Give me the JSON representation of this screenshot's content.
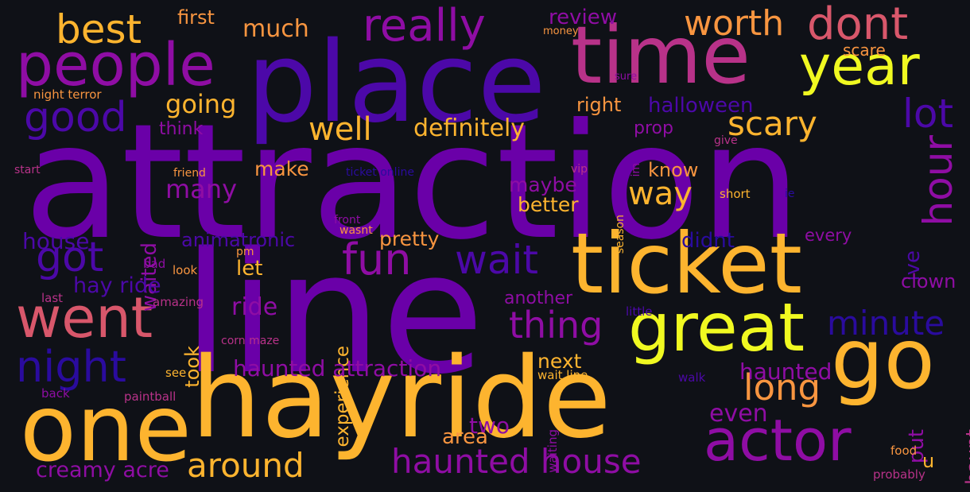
{
  "palette": {
    "background": "#0f1117",
    "deep_blue": "#2a0b9e",
    "indigo": "#4c08a8",
    "violet": "#6a00a8",
    "purple": "#8f0da4",
    "magenta": "#b83289",
    "rose": "#d8576b",
    "orange": "#f89540",
    "amber": "#fdb42f",
    "yellow": "#f0f921"
  },
  "words": [
    {
      "text": "attraction",
      "c": "violet"
    },
    {
      "text": "line",
      "c": "violet"
    },
    {
      "text": "hayride",
      "c": "amber"
    },
    {
      "text": "place",
      "c": "indigo"
    },
    {
      "text": "time",
      "c": "magenta"
    },
    {
      "text": "ticket",
      "c": "amber"
    },
    {
      "text": "one",
      "c": "amber"
    },
    {
      "text": "go",
      "c": "amber"
    },
    {
      "text": "great",
      "c": "yellow"
    },
    {
      "text": "people",
      "c": "purple"
    },
    {
      "text": "year",
      "c": "yellow"
    },
    {
      "text": "went",
      "c": "rose"
    },
    {
      "text": "actor",
      "c": "purple"
    },
    {
      "text": "really",
      "c": "purple"
    },
    {
      "text": "dont",
      "c": "rose"
    },
    {
      "text": "worth",
      "c": "orange"
    },
    {
      "text": "best",
      "c": "amber"
    },
    {
      "text": "good",
      "c": "indigo"
    },
    {
      "text": "fun",
      "c": "purple"
    },
    {
      "text": "wait",
      "c": "indigo"
    },
    {
      "text": "got",
      "c": "indigo"
    },
    {
      "text": "night",
      "c": "deep_blue"
    },
    {
      "text": "haunted house",
      "c": "purple"
    },
    {
      "text": "long",
      "c": "orange"
    },
    {
      "text": "scary",
      "c": "amber"
    },
    {
      "text": "lot",
      "c": "indigo"
    },
    {
      "text": "hour",
      "c": "purple"
    },
    {
      "text": "thing",
      "c": "purple"
    },
    {
      "text": "minute",
      "c": "deep_blue"
    },
    {
      "text": "around",
      "c": "amber"
    },
    {
      "text": "way",
      "c": "amber"
    },
    {
      "text": "well",
      "c": "amber"
    },
    {
      "text": "definitely",
      "c": "amber"
    },
    {
      "text": "going",
      "c": "amber"
    },
    {
      "text": "much",
      "c": "orange"
    },
    {
      "text": "first",
      "c": "orange"
    },
    {
      "text": "review",
      "c": "purple"
    },
    {
      "text": "money",
      "c": "orange"
    },
    {
      "text": "scare",
      "c": "orange"
    },
    {
      "text": "halloween",
      "c": "indigo"
    },
    {
      "text": "right",
      "c": "orange"
    },
    {
      "text": "think",
      "c": "purple"
    },
    {
      "text": "prop",
      "c": "purple"
    },
    {
      "text": "give",
      "c": "magenta"
    },
    {
      "text": "night terror",
      "c": "orange"
    },
    {
      "text": "sure",
      "c": "purple"
    },
    {
      "text": "start",
      "c": "magenta"
    },
    {
      "text": "friend",
      "c": "orange"
    },
    {
      "text": "ticket online",
      "c": "deep_blue"
    },
    {
      "text": "vip",
      "c": "magenta"
    },
    {
      "text": "season",
      "c": "amber"
    },
    {
      "text": "im",
      "c": "purple"
    },
    {
      "text": "know",
      "c": "orange"
    },
    {
      "text": "short",
      "c": "amber"
    },
    {
      "text": "ie",
      "c": "deep_blue"
    },
    {
      "text": "make",
      "c": "orange"
    },
    {
      "text": "many",
      "c": "purple"
    },
    {
      "text": "waited",
      "c": "purple"
    },
    {
      "text": "maybe",
      "c": "purple"
    },
    {
      "text": "better",
      "c": "amber"
    },
    {
      "text": "house",
      "c": "indigo"
    },
    {
      "text": "animatronic",
      "c": "indigo"
    },
    {
      "text": "pretty",
      "c": "orange"
    },
    {
      "text": "front",
      "c": "purple"
    },
    {
      "text": "wasnt",
      "c": "orange"
    },
    {
      "text": "didnt",
      "c": "deep_blue"
    },
    {
      "text": "every",
      "c": "purple"
    },
    {
      "text": "ive",
      "c": "indigo"
    },
    {
      "text": "pm",
      "c": "orange"
    },
    {
      "text": "bad",
      "c": "purple"
    },
    {
      "text": "look",
      "c": "orange"
    },
    {
      "text": "let",
      "c": "amber"
    },
    {
      "text": "hay ride",
      "c": "indigo"
    },
    {
      "text": "experience",
      "c": "amber"
    },
    {
      "text": "clown",
      "c": "purple"
    },
    {
      "text": "last",
      "c": "magenta"
    },
    {
      "text": "amazing",
      "c": "magenta"
    },
    {
      "text": "ride",
      "c": "purple"
    },
    {
      "text": "another",
      "c": "purple"
    },
    {
      "text": "little",
      "c": "indigo"
    },
    {
      "text": "took",
      "c": "amber"
    },
    {
      "text": "corn maze",
      "c": "magenta"
    },
    {
      "text": "haunted attraction",
      "c": "purple"
    },
    {
      "text": "next",
      "c": "amber"
    },
    {
      "text": "see",
      "c": "amber"
    },
    {
      "text": "wait line",
      "c": "amber"
    },
    {
      "text": "walk",
      "c": "indigo"
    },
    {
      "text": "haunted",
      "c": "purple"
    },
    {
      "text": "back",
      "c": "purple"
    },
    {
      "text": "paintball",
      "c": "magenta"
    },
    {
      "text": "waiting",
      "c": "purple"
    },
    {
      "text": "even",
      "c": "purple"
    },
    {
      "text": "haunt",
      "c": "magenta"
    },
    {
      "text": "two",
      "c": "purple"
    },
    {
      "text": "put",
      "c": "purple"
    },
    {
      "text": "area",
      "c": "orange"
    },
    {
      "text": "creamy acre",
      "c": "purple"
    },
    {
      "text": "food",
      "c": "orange"
    },
    {
      "text": "u",
      "c": "amber"
    },
    {
      "text": "probably",
      "c": "magenta"
    }
  ]
}
